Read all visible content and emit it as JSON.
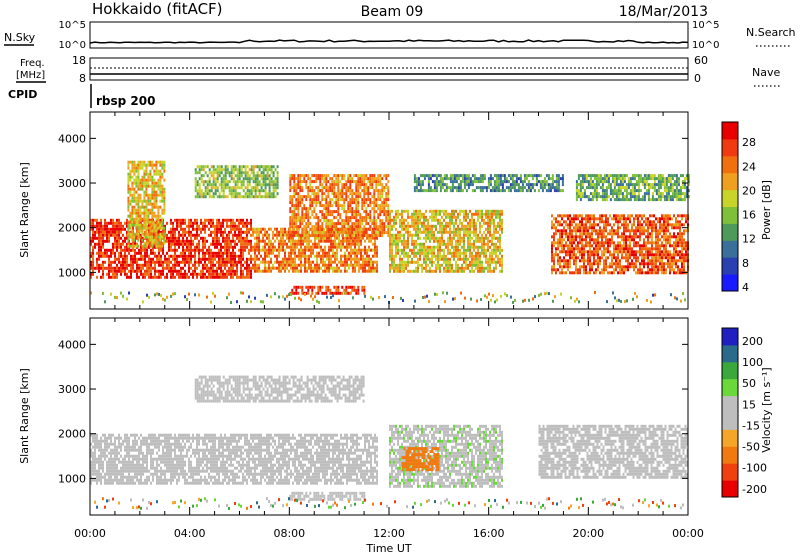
{
  "header": {
    "station": "Hokkaido (fitACF)",
    "beam": "Beam 09",
    "date": "18/Mar/2013"
  },
  "top_panel": {
    "nsky_label": "N.Sky",
    "nsky_ticks": [
      "10^5",
      "10^0"
    ],
    "nsearch_label": "N.Search",
    "nsearch_ticks": [
      "10^5",
      "10^0"
    ],
    "freq_label_line1": "Freq.",
    "freq_label_line2": "[MHz]",
    "freq_ticks": [
      "18",
      "8"
    ],
    "nave_label": "Nave",
    "nave_ticks": [
      "60",
      "0"
    ],
    "cpid_label": "CPID",
    "cpid_value": "rbsp 200"
  },
  "colors": {
    "power_scale": [
      "#1a1aff",
      "#2a3fb0",
      "#3a6f9a",
      "#4f9a5a",
      "#7fbf3a",
      "#c8d42a",
      "#f0a020",
      "#f07010",
      "#f03a10",
      "#e80000"
    ],
    "velocity_scale": [
      "#e80000",
      "#f04010",
      "#f07a10",
      "#f5a528",
      "#bebebe",
      "#bebebe",
      "#6ad83a",
      "#3aa83a",
      "#2a6a8a",
      "#2020c0"
    ],
    "ground_scatter": "#bebebe"
  },
  "chart_data": [
    {
      "type": "heatmap",
      "panel": "power",
      "ylabel": "Slant Range [km]",
      "ylim": [
        180,
        4590
      ],
      "yticks": [
        "4000",
        "3000",
        "2000",
        "1000"
      ],
      "xticks": [
        "00:00",
        "04:00",
        "08:00",
        "12:00",
        "16:00",
        "20:00",
        "00:00"
      ],
      "xlabel": "Time UT",
      "colorbar": {
        "label": "Power [dB]",
        "ticks": [
          "28",
          "24",
          "20",
          "16",
          "12",
          "8",
          "4"
        ],
        "range": [
          0,
          30
        ]
      },
      "echo_bands": [
        {
          "t_start": 0.0,
          "t_end": 6.5,
          "r_min": 900,
          "r_max": 2200,
          "level": 26
        },
        {
          "t_start": 6.5,
          "t_end": 11.5,
          "r_min": 1000,
          "r_max": 2000,
          "level": 22
        },
        {
          "t_start": 1.5,
          "t_end": 3.0,
          "r_min": 1600,
          "r_max": 3500,
          "level": 18
        },
        {
          "t_start": 4.2,
          "t_end": 7.5,
          "r_min": 2700,
          "r_max": 3400,
          "level": 14
        },
        {
          "t_start": 8.0,
          "t_end": 12.0,
          "r_min": 1800,
          "r_max": 3200,
          "level": 22
        },
        {
          "t_start": 8.0,
          "t_end": 11.0,
          "r_min": 500,
          "r_max": 700,
          "level": 26
        },
        {
          "t_start": 12.0,
          "t_end": 16.5,
          "r_min": 1000,
          "r_max": 2400,
          "level": 18
        },
        {
          "t_start": 13.0,
          "t_end": 19.0,
          "r_min": 2800,
          "r_max": 3200,
          "level": 10
        },
        {
          "t_start": 18.5,
          "t_end": 24.0,
          "r_min": 1000,
          "r_max": 2300,
          "level": 24
        },
        {
          "t_start": 19.5,
          "t_end": 24.0,
          "r_min": 2600,
          "r_max": 3200,
          "level": 12
        }
      ]
    },
    {
      "type": "heatmap",
      "panel": "velocity",
      "ylabel": "Slant Range [km]",
      "ylim": [
        180,
        4590
      ],
      "yticks": [
        "4000",
        "3000",
        "2000",
        "1000"
      ],
      "xticks": [
        "00:00",
        "04:00",
        "08:00",
        "12:00",
        "16:00",
        "20:00",
        "00:00"
      ],
      "xlabel": "Time UT",
      "colorbar": {
        "label": "Velocity [m s⁻¹]",
        "ticks": [
          "200",
          "100",
          "50",
          "15",
          "-15",
          "-50",
          "-100",
          "-200"
        ],
        "range": [
          -250,
          250
        ]
      },
      "echo_bands": [
        {
          "t_start": 0.0,
          "t_end": 11.5,
          "r_min": 900,
          "r_max": 2000,
          "level": 0
        },
        {
          "t_start": 4.2,
          "t_end": 11.0,
          "r_min": 2700,
          "r_max": 3300,
          "level": 0
        },
        {
          "t_start": 12.0,
          "t_end": 16.5,
          "r_min": 800,
          "r_max": 2200,
          "level": 40
        },
        {
          "t_start": 12.5,
          "t_end": 14.0,
          "r_min": 1200,
          "r_max": 1700,
          "level": -120
        },
        {
          "t_start": 18.0,
          "t_end": 24.0,
          "r_min": 1000,
          "r_max": 2200,
          "level": 0
        },
        {
          "t_start": 8.0,
          "t_end": 11.0,
          "r_min": 500,
          "r_max": 700,
          "level": 0
        }
      ]
    }
  ]
}
